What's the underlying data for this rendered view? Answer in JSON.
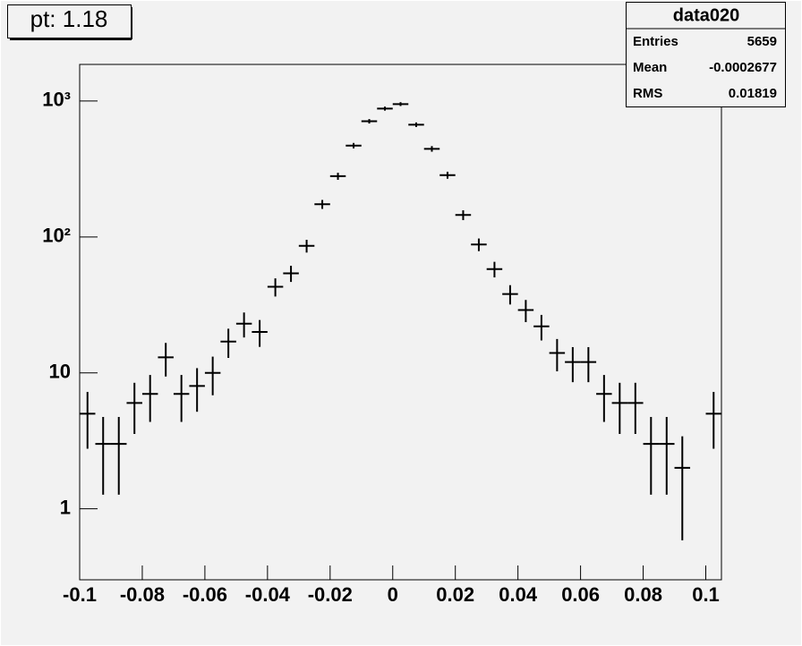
{
  "chart_data": {
    "type": "histogram",
    "title": "pt: 1.18",
    "bins": [
      -0.1,
      -0.095,
      -0.09,
      -0.085,
      -0.08,
      -0.075,
      -0.07,
      -0.065,
      -0.06,
      -0.055,
      -0.05,
      -0.045,
      -0.04,
      -0.035,
      -0.03,
      -0.025,
      -0.02,
      -0.015,
      -0.01,
      -0.005,
      0,
      0.005,
      0.01,
      0.015,
      0.02,
      0.025,
      0.03,
      0.035,
      0.04,
      0.045,
      0.05,
      0.055,
      0.06,
      0.065,
      0.07,
      0.075,
      0.08,
      0.085,
      0.09,
      0.095,
      0.1,
      0.105
    ],
    "values": [
      5,
      3,
      3,
      6,
      7,
      13,
      7,
      8,
      10,
      17,
      23,
      20,
      43,
      54,
      86,
      174,
      280,
      470,
      710,
      880,
      950,
      670,
      445,
      285,
      145,
      88,
      58,
      38,
      29,
      22,
      14,
      12,
      12,
      7,
      6,
      6,
      3,
      3,
      2,
      0,
      5
    ],
    "color": "#000000",
    "xlim": [
      -0.1,
      0.105
    ],
    "xticks": [
      -0.1,
      -0.08,
      -0.06,
      -0.04,
      -0.02,
      0,
      0.02,
      0.04,
      0.06,
      0.08,
      0.1
    ],
    "ylim": [
      0.3,
      1860
    ],
    "log_y": true,
    "yticks": [
      1,
      10,
      {
        "value": 100,
        "label": "10²"
      },
      {
        "value": 1000,
        "label": "10³"
      }
    ],
    "stats": {
      "title": "data020",
      "rows": [
        [
          "Entries",
          5659
        ],
        [
          "Mean",
          -0.0002677
        ],
        [
          "RMS",
          0.01819
        ]
      ]
    }
  }
}
